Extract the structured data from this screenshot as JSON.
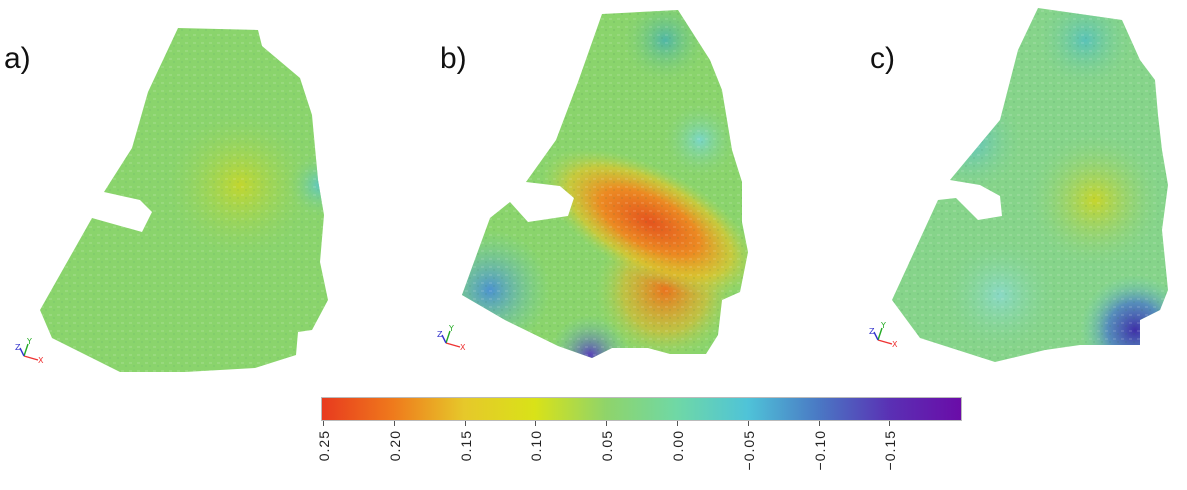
{
  "panels": [
    {
      "label": "a)"
    },
    {
      "label": "b)"
    },
    {
      "label": "c)"
    }
  ],
  "axes_triad": {
    "z": "Z",
    "y": "Y",
    "x": "X"
  },
  "colorbar": {
    "tick_labels": [
      "0.25",
      "0.20",
      "0.15",
      "0.10",
      "0.05",
      "0.00",
      "−0.05",
      "−0.10",
      "−0.15"
    ],
    "stops": [
      "#e83a1e",
      "#ef7a1c",
      "#e6c82a",
      "#d9e218",
      "#8fd46a",
      "#6fd8a6",
      "#4fc3d8",
      "#4a78c4",
      "#5a30b4",
      "#6a0ca8"
    ]
  }
}
